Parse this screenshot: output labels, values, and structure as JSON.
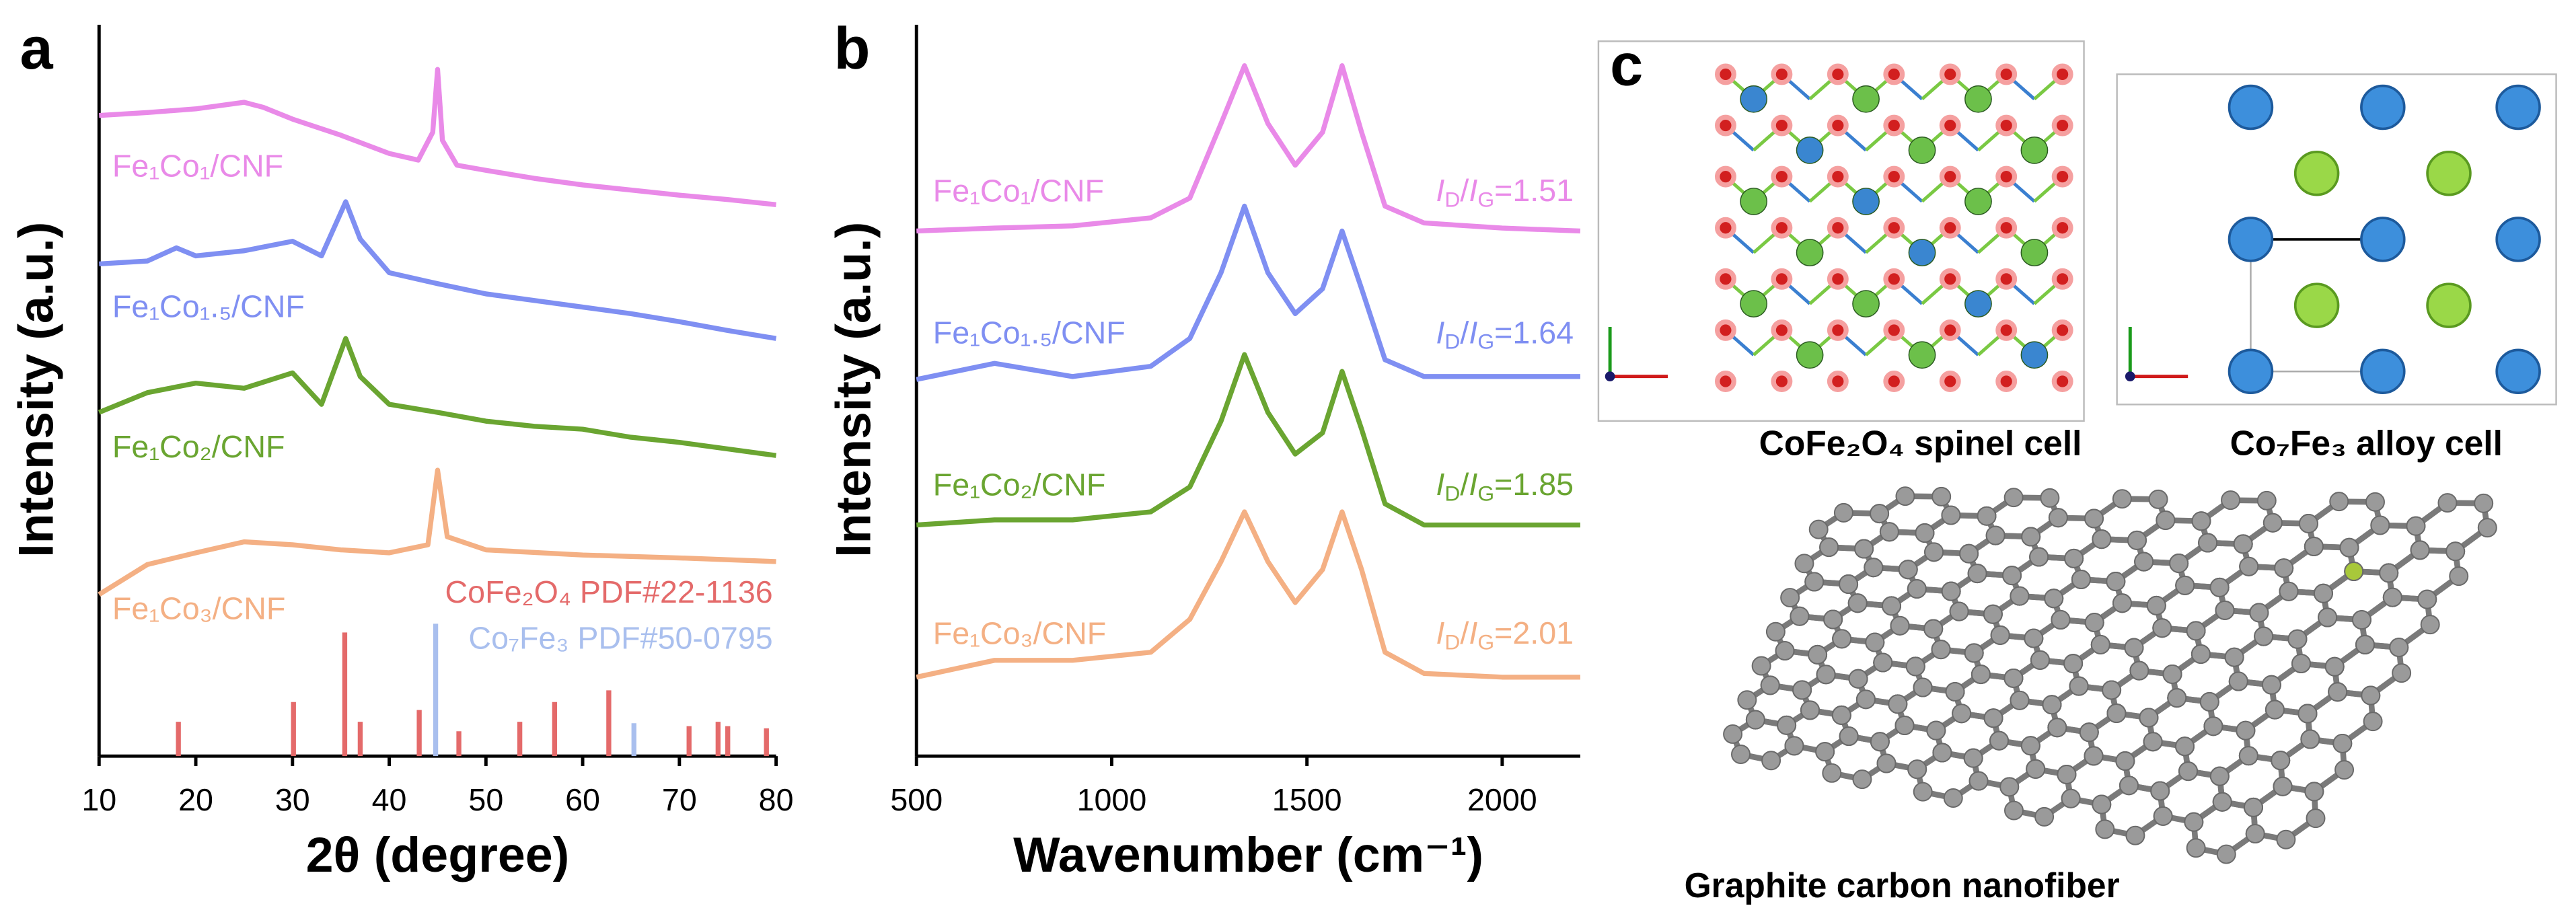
{
  "chart_data": [
    {
      "type": "line",
      "label": "a",
      "xlabel": "2θ (degree)",
      "ylabel": "Intensity (a.u.)",
      "xlim": [
        10,
        80
      ],
      "xticks": [
        10,
        20,
        30,
        40,
        50,
        60,
        70,
        80
      ],
      "ylim": [
        0,
        100
      ],
      "series": [
        {
          "name": "Fe₁Co₁/CNF",
          "color": "#e98ae8",
          "x": [
            10,
            15,
            20,
            25,
            27,
            30,
            35,
            40,
            43,
            44.5,
            45,
            45.5,
            47,
            50,
            55,
            60,
            65,
            70,
            75,
            80
          ],
          "values": [
            87.6,
            88.0,
            88.5,
            89.4,
            88.7,
            87.1,
            84.9,
            82.4,
            81.5,
            85.3,
            93.9,
            84.2,
            80.8,
            80.1,
            79.0,
            78.1,
            77.4,
            76.7,
            76.1,
            75.4
          ]
        },
        {
          "name": "Fe₁Co₁.₅/CNF",
          "color": "#7f8ff2",
          "x": [
            10,
            15,
            18,
            20,
            25,
            30,
            33,
            35.5,
            37,
            40,
            45,
            50,
            55,
            60,
            65,
            70,
            75,
            80
          ],
          "values": [
            67.3,
            67.7,
            69.5,
            68.4,
            69.1,
            70.4,
            68.4,
            75.8,
            70.7,
            66.1,
            64.6,
            63.2,
            62.3,
            61.4,
            60.5,
            59.4,
            58.2,
            57.1
          ]
        },
        {
          "name": "Fe₁Co₂/CNF",
          "color": "#6aa531",
          "x": [
            10,
            15,
            20,
            25,
            30,
            33,
            35.5,
            37,
            40,
            45,
            50,
            55,
            60,
            65,
            70,
            75,
            80
          ],
          "values": [
            47.0,
            49.7,
            51.0,
            50.3,
            52.4,
            48.1,
            57.1,
            51.9,
            48.1,
            47.0,
            45.8,
            45.1,
            44.7,
            43.6,
            42.9,
            42.0,
            41.1
          ]
        },
        {
          "name": "Fe₁Co₃/CNF",
          "color": "#f4b084",
          "x": [
            10,
            15,
            20,
            25,
            30,
            35,
            40,
            44,
            45,
            46,
            50,
            60,
            70,
            80
          ],
          "values": [
            22.1,
            26.2,
            27.8,
            29.3,
            28.9,
            28.2,
            27.8,
            28.9,
            39.1,
            30.0,
            28.2,
            27.5,
            27.1,
            26.6
          ]
        }
      ],
      "reference_patterns": [
        {
          "name": "CoFe₂O₄ PDF#22-1136",
          "color": "#e46a6a",
          "x": [
            18.2,
            30.1,
            35.4,
            37.0,
            43.1,
            47.2,
            53.5,
            57.1,
            62.7,
            71.0,
            74.0,
            75.0,
            79.0
          ],
          "values": [
            4.7,
            7.4,
            16.9,
            4.7,
            6.3,
            3.4,
            4.7,
            7.4,
            9.0,
            4.1,
            4.7,
            4.1,
            3.8
          ]
        },
        {
          "name": "Co₇Fe₃ PDF#50-0795",
          "color": "#a9bfee",
          "x": [
            44.8,
            65.3
          ],
          "values": [
            18.1,
            4.5
          ]
        }
      ]
    },
    {
      "type": "line",
      "label": "b",
      "xlabel": "Wavenumber (cm⁻¹)",
      "ylabel": "Intensity (a.u.)",
      "xlim": [
        500,
        2200
      ],
      "xticks": [
        500,
        1000,
        1500,
        2000
      ],
      "ylim": [
        0,
        100
      ],
      "x": [
        500,
        700,
        900,
        1100,
        1200,
        1280,
        1340,
        1400,
        1470,
        1540,
        1590,
        1640,
        1700,
        1800,
        2000,
        2200
      ],
      "series": [
        {
          "name": "Fe₁Co₁/CNF",
          "color": "#e98ae8",
          "values": [
            71.8,
            72.2,
            72.5,
            73.6,
            76.3,
            86.5,
            94.4,
            86.5,
            80.8,
            85.3,
            94.4,
            85.3,
            75.2,
            72.9,
            72.2,
            71.8
          ]
        },
        {
          "name": "Fe₁Co₁.₅/CNF",
          "color": "#7f8ff2",
          "values": [
            51.5,
            53.7,
            51.9,
            53.3,
            57.1,
            66.1,
            75.2,
            66.1,
            60.5,
            63.9,
            71.8,
            63.9,
            54.2,
            51.9,
            51.9,
            51.9
          ]
        },
        {
          "name": "Fe₁Co₂/CNF",
          "color": "#6aa531",
          "values": [
            31.6,
            32.3,
            32.3,
            33.4,
            36.8,
            45.8,
            54.9,
            47.0,
            41.3,
            44.2,
            52.6,
            44.7,
            34.5,
            31.6,
            31.6,
            31.6
          ]
        },
        {
          "name": "Fe₁Co₃/CNF",
          "color": "#f4b084",
          "values": [
            10.8,
            13.1,
            13.1,
            14.2,
            18.7,
            26.6,
            33.4,
            26.6,
            21.0,
            25.5,
            33.4,
            25.5,
            14.2,
            11.3,
            10.8,
            10.8
          ]
        }
      ],
      "ratio_label_parts": [
        "I",
        "D",
        "/",
        "I",
        "G",
        "="
      ],
      "id_ig": [
        1.51,
        1.64,
        1.85,
        2.01
      ]
    }
  ],
  "panel_c": {
    "label": "c",
    "spinel_caption": "CoFe₂O₄ spinel cell",
    "alloy_caption": "Co₇Fe₃ alloy cell",
    "fiber_caption": "Graphite carbon nanofiber"
  }
}
